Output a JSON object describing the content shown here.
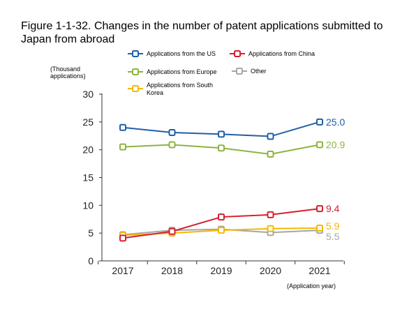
{
  "figure": {
    "title": "Figure 1-1-32. Changes in the number of patent applications submitted to Japan from abroad"
  },
  "chart_data": {
    "type": "line",
    "title": "Figure 1-1-32. Changes in the number of patent applications submitted to Japan from abroad",
    "ylabel": "(Thousand applications)",
    "xlabel": "(Application year)",
    "categories": [
      "2017",
      "2018",
      "2019",
      "2020",
      "2021"
    ],
    "ylim": [
      0,
      30
    ],
    "yticks": [
      0,
      5,
      10,
      15,
      20,
      25,
      30
    ],
    "grid": false,
    "legend_position": "top",
    "series": [
      {
        "name": "Applications from the US",
        "color": "#1f5fa8",
        "values": [
          24.0,
          23.1,
          22.8,
          22.4,
          25.0
        ],
        "end_label": "25.0"
      },
      {
        "name": "Applications from China",
        "color": "#d61f2c",
        "values": [
          4.1,
          5.3,
          7.9,
          8.3,
          9.4
        ],
        "end_label": "9.4"
      },
      {
        "name": "Applications from Europe",
        "color": "#8db43e",
        "values": [
          20.5,
          20.9,
          20.3,
          19.2,
          20.9
        ],
        "end_label": "20.9"
      },
      {
        "name": "Other",
        "color": "#a6a6a6",
        "values": [
          4.7,
          5.5,
          5.7,
          5.1,
          5.5
        ],
        "end_label": "5.5"
      },
      {
        "name": "Applications from South Korea",
        "color": "#f5b800",
        "values": [
          4.6,
          5.0,
          5.5,
          5.8,
          5.9
        ],
        "end_label": "5.9"
      }
    ]
  }
}
